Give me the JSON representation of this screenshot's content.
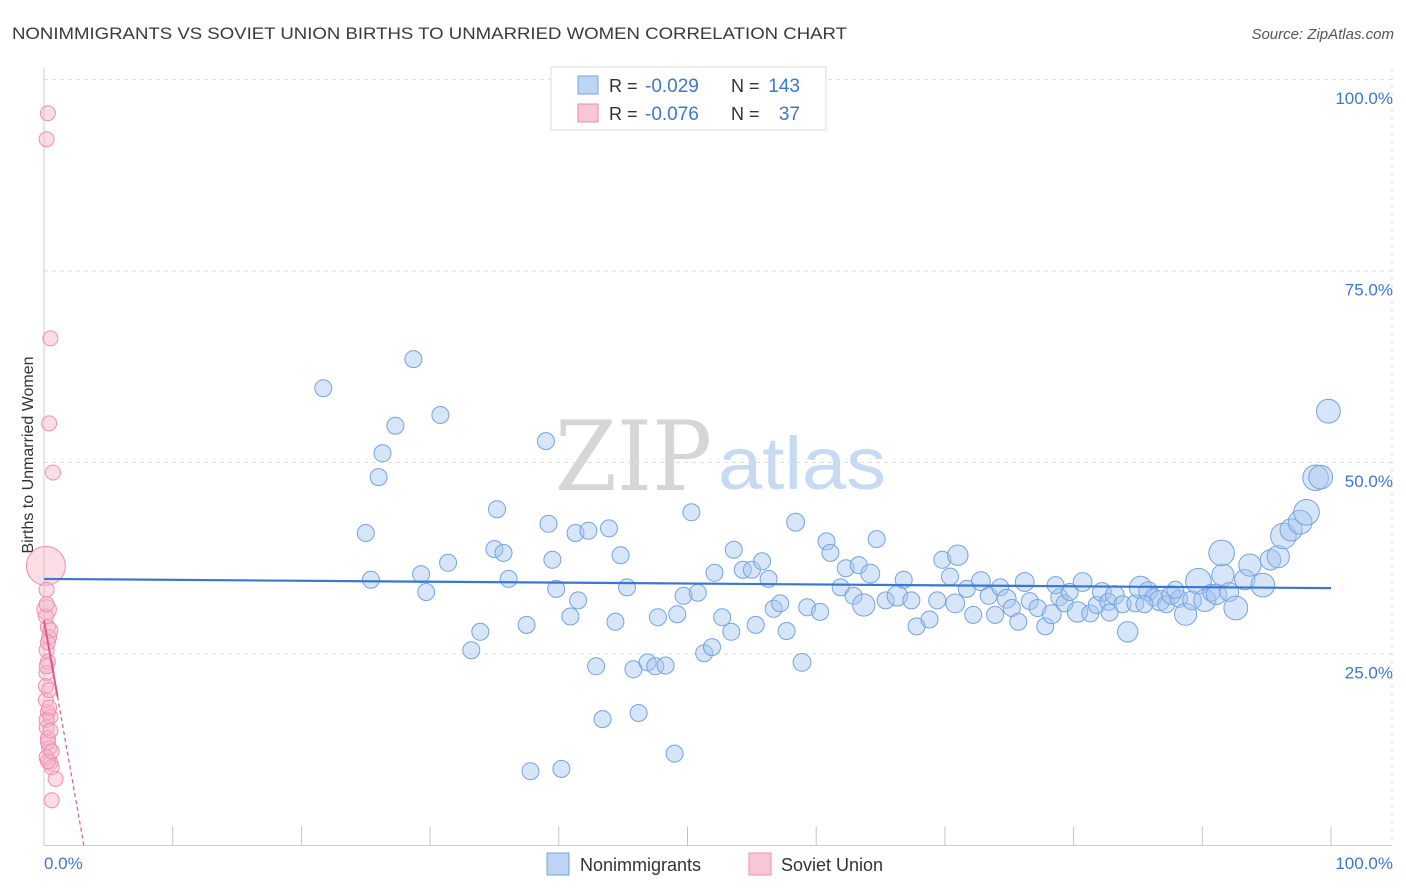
{
  "source": "Source: ZipAtlas.com",
  "watermark": {
    "zip": "ZIP",
    "atlas": "atlas"
  },
  "legend": {
    "r_label": "R =",
    "n_label": "N ="
  },
  "colors": {
    "accent_text": "#3b78d0",
    "title_text": "#3a3a3a",
    "grid": "#dedede"
  },
  "chart_data": {
    "type": "scatter",
    "title": "NONIMMIGRANTS VS SOVIET UNION BIRTHS TO UNMARRIED WOMEN CORRELATION CHART",
    "ylabel": "Births to Unmarried Women",
    "xlim": [
      0,
      100
    ],
    "ylim": [
      0,
      100
    ],
    "grid": true,
    "legend_position": "top-center",
    "x_ticks": [
      0,
      10,
      20,
      30,
      40,
      50,
      60,
      70,
      80,
      90,
      100
    ],
    "x_tick_labels": [
      "0.0%",
      "100.0%"
    ],
    "y_ticks": [
      {
        "value": 100,
        "label": "100.0%"
      },
      {
        "value": 75,
        "label": "75.0%"
      },
      {
        "value": 50,
        "label": "50.0%"
      },
      {
        "value": 25,
        "label": "25.0%"
      }
    ],
    "series": [
      {
        "name": "Nonimmigrants",
        "r": "-0.029",
        "n": "143",
        "fill": "#a7c5ef",
        "stroke": "#74a3e2",
        "line": "#3b77d0",
        "trend": {
          "x0": 0,
          "y0": 34.8,
          "x1": 100,
          "y1": 33.6
        },
        "points": [
          [
            21.7,
            59.7,
            1
          ],
          [
            28.7,
            63.5,
            1
          ],
          [
            27.3,
            54.8,
            1
          ],
          [
            30.8,
            56.2,
            1
          ],
          [
            26.3,
            51.2,
            1
          ],
          [
            26.0,
            48.1,
            1
          ],
          [
            39.0,
            52.8,
            1
          ],
          [
            25.0,
            40.8,
            1
          ],
          [
            35.2,
            43.9,
            1
          ],
          [
            39.2,
            42.0,
            1
          ],
          [
            50.3,
            43.5,
            1
          ],
          [
            58.4,
            42.2,
            1.05
          ],
          [
            25.4,
            34.7,
            1
          ],
          [
            29.3,
            35.4,
            1
          ],
          [
            29.7,
            33.1,
            1
          ],
          [
            31.4,
            36.9,
            1
          ],
          [
            35.0,
            38.7,
            1
          ],
          [
            35.7,
            38.2,
            1
          ],
          [
            36.1,
            34.8,
            1
          ],
          [
            39.5,
            37.3,
            1
          ],
          [
            41.3,
            40.8,
            1
          ],
          [
            42.3,
            41.1,
            1
          ],
          [
            43.9,
            41.4,
            1
          ],
          [
            44.8,
            37.9,
            1
          ],
          [
            39.8,
            33.5,
            1
          ],
          [
            41.5,
            32.0,
            1
          ],
          [
            45.3,
            33.7,
            1
          ],
          [
            40.9,
            29.9,
            1
          ],
          [
            44.4,
            29.2,
            1
          ],
          [
            47.7,
            29.8,
            1
          ],
          [
            49.2,
            30.2,
            1
          ],
          [
            49.7,
            32.6,
            1
          ],
          [
            50.8,
            33.0,
            1
          ],
          [
            52.1,
            35.6,
            1
          ],
          [
            53.6,
            38.6,
            1
          ],
          [
            54.3,
            36.0,
            1
          ],
          [
            55.0,
            36.0,
            1
          ],
          [
            55.8,
            37.1,
            1
          ],
          [
            56.3,
            34.8,
            1
          ],
          [
            60.8,
            39.7,
            1
          ],
          [
            61.1,
            38.2,
            1
          ],
          [
            64.7,
            40.0,
            1
          ],
          [
            33.9,
            27.9,
            1
          ],
          [
            33.2,
            25.5,
            1
          ],
          [
            37.5,
            28.8,
            1
          ],
          [
            42.9,
            23.4,
            1
          ],
          [
            45.8,
            23.0,
            1
          ],
          [
            46.9,
            23.9,
            1
          ],
          [
            47.5,
            23.4,
            1
          ],
          [
            48.3,
            23.5,
            1
          ],
          [
            51.3,
            25.1,
            1
          ],
          [
            51.9,
            25.9,
            1
          ],
          [
            52.7,
            29.8,
            1
          ],
          [
            53.4,
            27.9,
            1
          ],
          [
            55.3,
            28.8,
            1
          ],
          [
            56.7,
            30.9,
            1
          ],
          [
            57.7,
            28.0,
            1
          ],
          [
            57.2,
            31.6,
            1
          ],
          [
            58.9,
            23.9,
            1.05
          ],
          [
            59.3,
            31.1,
            1
          ],
          [
            60.3,
            30.5,
            1
          ],
          [
            43.4,
            16.5,
            1
          ],
          [
            46.2,
            17.3,
            1
          ],
          [
            49.0,
            12.0,
            1
          ],
          [
            37.8,
            9.7,
            1
          ],
          [
            40.2,
            10.0,
            1
          ],
          [
            61.9,
            33.7,
            1
          ],
          [
            62.3,
            36.2,
            1
          ],
          [
            63.3,
            36.6,
            1
          ],
          [
            64.2,
            35.5,
            1.1
          ],
          [
            62.9,
            32.6,
            1
          ],
          [
            63.7,
            31.4,
            1.3
          ],
          [
            65.4,
            32.0,
            1
          ],
          [
            66.3,
            32.6,
            1.2
          ],
          [
            66.8,
            34.7,
            1
          ],
          [
            67.4,
            32.0,
            1
          ],
          [
            67.8,
            28.6,
            1
          ],
          [
            68.8,
            29.5,
            1
          ],
          [
            69.4,
            32.0,
            1
          ],
          [
            69.8,
            37.3,
            1
          ],
          [
            70.4,
            35.1,
            1
          ],
          [
            71.0,
            37.9,
            1.2
          ],
          [
            70.8,
            31.6,
            1.1
          ],
          [
            71.7,
            33.5,
            1
          ],
          [
            72.2,
            30.1,
            1
          ],
          [
            72.8,
            34.5,
            1.1
          ],
          [
            73.4,
            32.6,
            1
          ],
          [
            73.9,
            30.1,
            1
          ],
          [
            74.3,
            33.7,
            1
          ],
          [
            74.8,
            32.2,
            1.1
          ],
          [
            75.2,
            31.0,
            1
          ],
          [
            75.7,
            29.2,
            1
          ],
          [
            76.2,
            34.4,
            1.1
          ],
          [
            76.6,
            31.9,
            1
          ],
          [
            77.2,
            31.0,
            1
          ],
          [
            77.8,
            28.6,
            1
          ],
          [
            78.3,
            30.2,
            1.1
          ],
          [
            78.9,
            32.4,
            1
          ],
          [
            79.3,
            31.6,
            1
          ],
          [
            79.7,
            33.1,
            1
          ],
          [
            80.3,
            30.5,
            1.2
          ],
          [
            80.7,
            34.4,
            1.1
          ],
          [
            81.3,
            30.3,
            1
          ],
          [
            81.8,
            31.4,
            1
          ],
          [
            82.2,
            33.1,
            1.1
          ],
          [
            82.7,
            31.8,
            1
          ],
          [
            83.2,
            32.7,
            1.1
          ],
          [
            83.8,
            31.5,
            1
          ],
          [
            84.2,
            27.9,
            1.2
          ],
          [
            84.8,
            31.6,
            1
          ],
          [
            85.2,
            33.7,
            1.3
          ],
          [
            85.8,
            33.2,
            1.1
          ],
          [
            86.2,
            32.4,
            1
          ],
          [
            86.7,
            32.0,
            1.2
          ],
          [
            87.2,
            31.5,
            1
          ],
          [
            87.6,
            32.7,
            1.1
          ],
          [
            88.2,
            32.2,
            1
          ],
          [
            88.7,
            30.2,
            1.3
          ],
          [
            89.2,
            32.0,
            1.1
          ],
          [
            89.7,
            34.5,
            1.5
          ],
          [
            90.2,
            32.0,
            1.3
          ],
          [
            90.7,
            33.0,
            1
          ],
          [
            91.1,
            32.8,
            1.2
          ],
          [
            91.6,
            35.3,
            1.3
          ],
          [
            92.1,
            33.1,
            1.1
          ],
          [
            92.6,
            31.0,
            1.4
          ],
          [
            91.5,
            38.2,
            1.5
          ],
          [
            93.3,
            34.7,
            1.2
          ],
          [
            93.7,
            36.6,
            1.3
          ],
          [
            94.7,
            34.0,
            1.4
          ],
          [
            95.3,
            37.3,
            1.2
          ],
          [
            95.9,
            37.7,
            1.3
          ],
          [
            96.3,
            40.4,
            1.5
          ],
          [
            96.9,
            41.2,
            1.3
          ],
          [
            97.6,
            42.2,
            1.4
          ],
          [
            98.1,
            43.5,
            1.5
          ],
          [
            98.8,
            48.0,
            1.5
          ],
          [
            99.2,
            48.1,
            1.4
          ],
          [
            99.8,
            56.7,
            1.4
          ],
          [
            78.6,
            34.0,
            1
          ],
          [
            82.8,
            30.4,
            1
          ],
          [
            85.5,
            31.5,
            1
          ],
          [
            87.9,
            33.4,
            1
          ]
        ]
      },
      {
        "name": "Soviet Union",
        "r": "-0.076",
        "n": "37",
        "fill": "#f6b4c8",
        "stroke": "#ef8eae",
        "line": "#e05a87",
        "trend": {
          "x0": 0,
          "y0": 29.4,
          "x1": 3.1,
          "y1": 0,
          "solid_until_x": 1.05
        },
        "points": [
          [
            0.3,
            95.6,
            1
          ],
          [
            0.2,
            92.2,
            1
          ],
          [
            0.5,
            66.2,
            1
          ],
          [
            0.4,
            55.1,
            1
          ],
          [
            0.7,
            48.7,
            1
          ],
          [
            0.15,
            36.5,
            2.6
          ],
          [
            0.2,
            33.4,
            1
          ],
          [
            0.2,
            30.8,
            1.3
          ],
          [
            0.3,
            28.5,
            1
          ],
          [
            0.4,
            27.2,
            1
          ],
          [
            0.2,
            25.5,
            1
          ],
          [
            0.3,
            24.0,
            1
          ],
          [
            0.2,
            22.5,
            1
          ],
          [
            0.15,
            20.8,
            1
          ],
          [
            0.3,
            17.4,
            1
          ],
          [
            0.5,
            16.8,
            1
          ],
          [
            0.2,
            15.4,
            1
          ],
          [
            0.3,
            14.0,
            1
          ],
          [
            0.4,
            12.7,
            1
          ],
          [
            0.2,
            11.5,
            1
          ],
          [
            0.5,
            10.8,
            1
          ],
          [
            0.6,
            10.2,
            1
          ],
          [
            0.9,
            8.7,
            1
          ],
          [
            0.6,
            5.9,
            1
          ],
          [
            0.15,
            29.9,
            1
          ],
          [
            0.5,
            28.1,
            1
          ],
          [
            0.15,
            19.0,
            1
          ],
          [
            0.4,
            20.3,
            1
          ],
          [
            0.3,
            13.5,
            1
          ],
          [
            0.2,
            16.4,
            1
          ],
          [
            0.3,
            26.5,
            1
          ],
          [
            0.2,
            23.4,
            1
          ],
          [
            0.4,
            18.0,
            1
          ],
          [
            0.3,
            11.0,
            1
          ],
          [
            0.6,
            12.3,
            1
          ],
          [
            0.2,
            31.5,
            1
          ],
          [
            0.5,
            15.0,
            1
          ]
        ]
      }
    ]
  }
}
